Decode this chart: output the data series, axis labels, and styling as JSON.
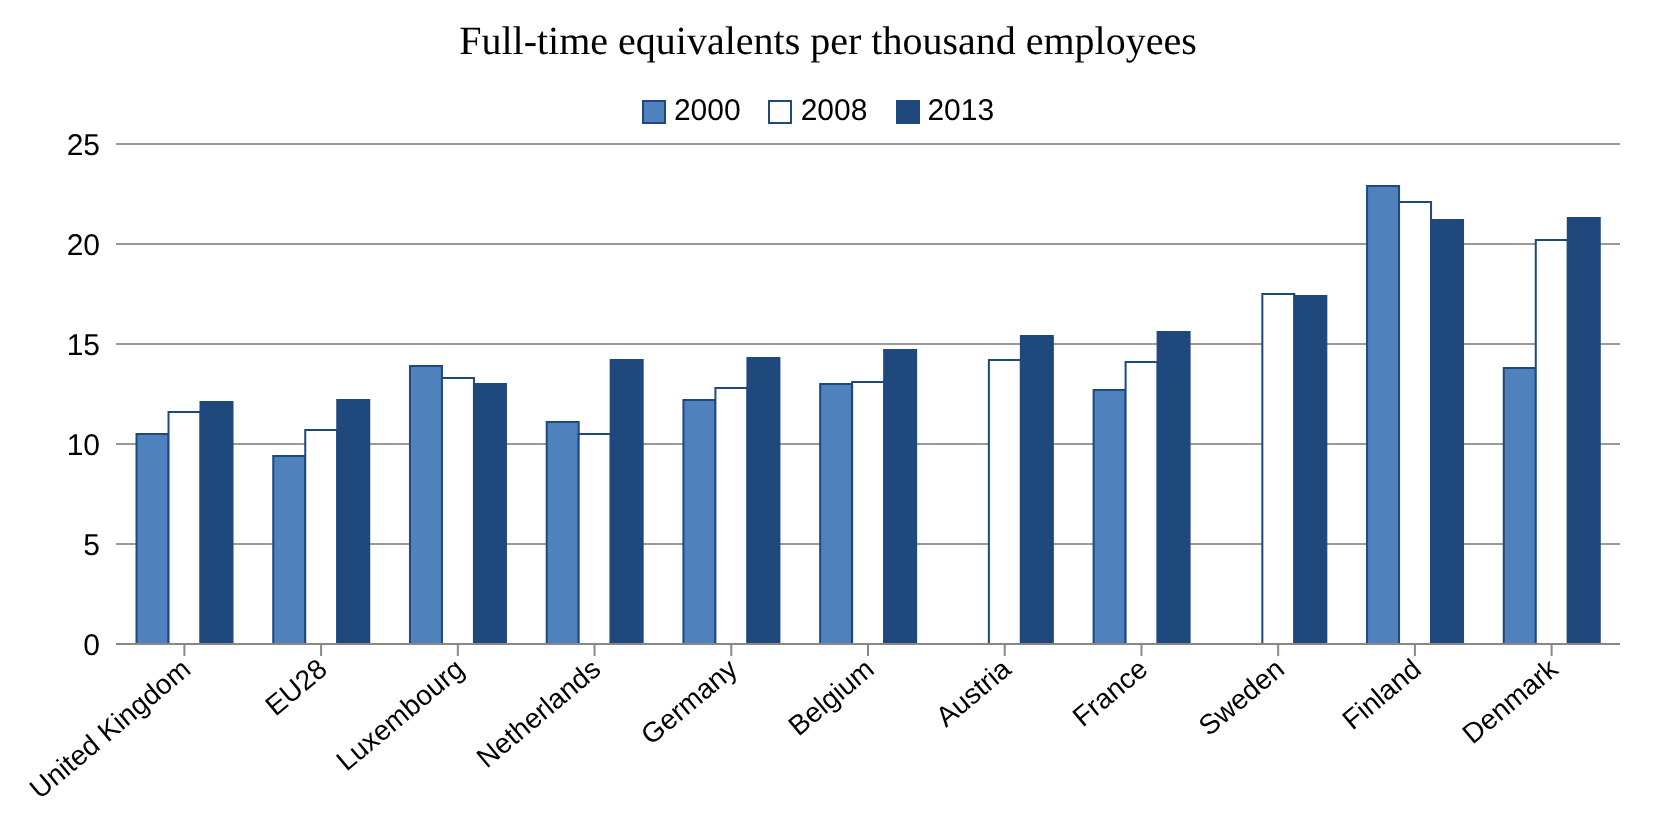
{
  "chart_data": {
    "type": "bar",
    "title": "Full-time equivalents per thousand employees",
    "categories": [
      "United Kingdom",
      "EU28",
      "Luxembourg",
      "Netherlands",
      "Germany",
      "Belgium",
      "Austria",
      "France",
      "Sweden",
      "Finland",
      "Denmark"
    ],
    "series": [
      {
        "name": "2000",
        "color": "#4f81bd",
        "values": [
          10.5,
          9.4,
          13.9,
          11.1,
          12.2,
          13.0,
          null,
          12.7,
          null,
          22.9,
          13.8
        ]
      },
      {
        "name": "2008",
        "color": "#ffffff",
        "values": [
          11.6,
          10.7,
          13.3,
          10.5,
          12.8,
          13.1,
          14.2,
          14.1,
          17.5,
          22.1,
          20.2
        ]
      },
      {
        "name": "2013",
        "color": "#1f497d",
        "values": [
          12.1,
          12.2,
          13.0,
          14.2,
          14.3,
          14.7,
          15.4,
          15.6,
          17.4,
          21.2,
          21.3
        ]
      }
    ],
    "ylim": [
      0,
      25
    ],
    "yticks": [
      0,
      5,
      10,
      15,
      20,
      25
    ],
    "grid": "y",
    "legend": "top"
  }
}
